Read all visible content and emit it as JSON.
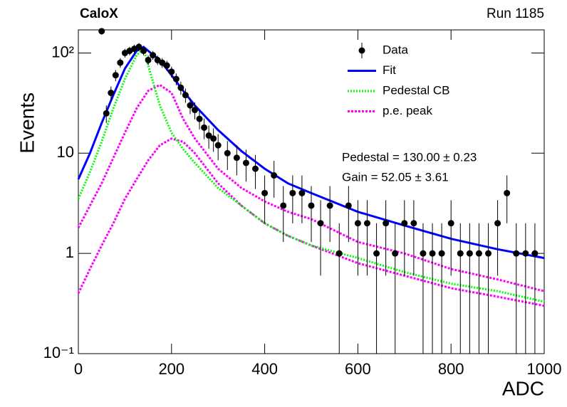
{
  "chart_data": {
    "type": "line",
    "title": "CaloX",
    "subtitle": "Run 1185",
    "x_label": "ADC",
    "y_label": "Events",
    "log_y": true,
    "xlim": [
      0,
      1000
    ],
    "xticks": [
      0,
      200,
      400,
      600,
      800,
      1000
    ],
    "ylim": [
      0.1,
      170
    ],
    "yticks": [
      {
        "value": 0.1,
        "label": "10⁻¹"
      },
      1,
      10,
      {
        "value": 100,
        "label": "10²"
      }
    ],
    "annotations": [
      "Pedestal = 130.00 ± 0.23",
      "Gain = 52.05 ± 3.61"
    ],
    "series": [
      {
        "name": "Data",
        "color": "#000000",
        "style": "points",
        "x": [
          50,
          60,
          70,
          80,
          90,
          100,
          110,
          120,
          130,
          140,
          150,
          160,
          170,
          180,
          190,
          200,
          210,
          220,
          230,
          240,
          250,
          260,
          270,
          280,
          290,
          300,
          320,
          340,
          360,
          380,
          400,
          420,
          440,
          460,
          480,
          500,
          520,
          540,
          560,
          580,
          600,
          620,
          640,
          660,
          680,
          700,
          720,
          740,
          760,
          780,
          800,
          820,
          840,
          860,
          880,
          900,
          920,
          940,
          960,
          980
        ],
        "values": [
          165,
          25,
          40,
          60,
          80,
          100,
          105,
          110,
          115,
          105,
          85,
          95,
          85,
          80,
          75,
          65,
          55,
          45,
          38,
          30,
          27,
          22,
          18,
          15,
          14,
          12,
          10,
          9,
          8,
          7,
          4,
          6,
          3,
          4,
          4,
          3,
          2,
          3,
          1,
          3,
          2,
          2,
          1,
          2,
          1,
          2,
          2,
          1,
          1,
          1,
          2,
          1,
          1,
          1,
          1,
          2,
          4,
          1,
          1,
          1
        ],
        "errors": [
          12.8,
          5,
          6.3,
          7.7,
          8.9,
          10,
          10.2,
          10.5,
          10.7,
          10.2,
          9.2,
          9.7,
          9.2,
          8.9,
          8.7,
          8.1,
          7.4,
          6.7,
          6.2,
          5.5,
          5.2,
          4.7,
          4.2,
          3.9,
          3.7,
          3.5,
          3.2,
          3,
          2.8,
          2.6,
          2,
          2.4,
          1.7,
          2,
          2,
          1.7,
          1.4,
          1.7,
          1,
          1.7,
          1.4,
          1.4,
          1,
          1.4,
          1,
          1.4,
          1.4,
          1,
          1,
          1,
          1.4,
          1,
          1,
          1,
          1,
          1.4,
          2,
          1,
          1,
          1
        ]
      },
      {
        "name": "Fit",
        "color": "#0000ff",
        "style": "solid",
        "x": [
          0,
          25,
          50,
          75,
          100,
          125,
          140,
          150,
          175,
          200,
          225,
          250,
          300,
          350,
          400,
          450,
          500,
          600,
          700,
          800,
          900,
          1000
        ],
        "values": [
          5.5,
          10,
          20,
          38,
          70,
          105,
          115,
          105,
          85,
          60,
          42,
          30,
          17,
          10.5,
          7,
          5,
          4,
          2.6,
          1.9,
          1.4,
          1.1,
          0.9
        ]
      },
      {
        "name": "Pedestal CB",
        "color": "#00ff00",
        "style": "dotted",
        "x": [
          0,
          25,
          50,
          75,
          100,
          125,
          140,
          150,
          175,
          200,
          225,
          250,
          300,
          350,
          400,
          450,
          500,
          600,
          700,
          800,
          900,
          1000
        ],
        "values": [
          3.5,
          6.5,
          13,
          28,
          55,
          95,
          110,
          75,
          30,
          16,
          11,
          8,
          4.5,
          3,
          2,
          1.5,
          1.2,
          0.9,
          0.65,
          0.5,
          0.42,
          0.33
        ]
      },
      {
        "name": "p.e. peak",
        "color": "#ff00ff",
        "style": "dashed",
        "x": [
          0,
          25,
          50,
          75,
          100,
          125,
          150,
          175,
          200,
          225,
          250,
          300,
          350,
          400,
          450,
          500,
          600,
          700,
          800,
          900,
          1000,
          null,
          0,
          25,
          50,
          75,
          100,
          125,
          150,
          175,
          200,
          225,
          250,
          300,
          350,
          400,
          450,
          500,
          600,
          700,
          800,
          900,
          1000
        ],
        "values": [
          1.8,
          3,
          5,
          9,
          16,
          28,
          42,
          48,
          40,
          22,
          14,
          7,
          4.5,
          3.3,
          2.6,
          2.2,
          1.3,
          1,
          0.7,
          0.55,
          0.42,
          null,
          0.4,
          0.7,
          1.2,
          2,
          3.5,
          5.5,
          8.5,
          12,
          14,
          13,
          10,
          5,
          3,
          2,
          1.5,
          1.2,
          0.8,
          0.6,
          0.45,
          0.37,
          0.3
        ]
      }
    ]
  }
}
